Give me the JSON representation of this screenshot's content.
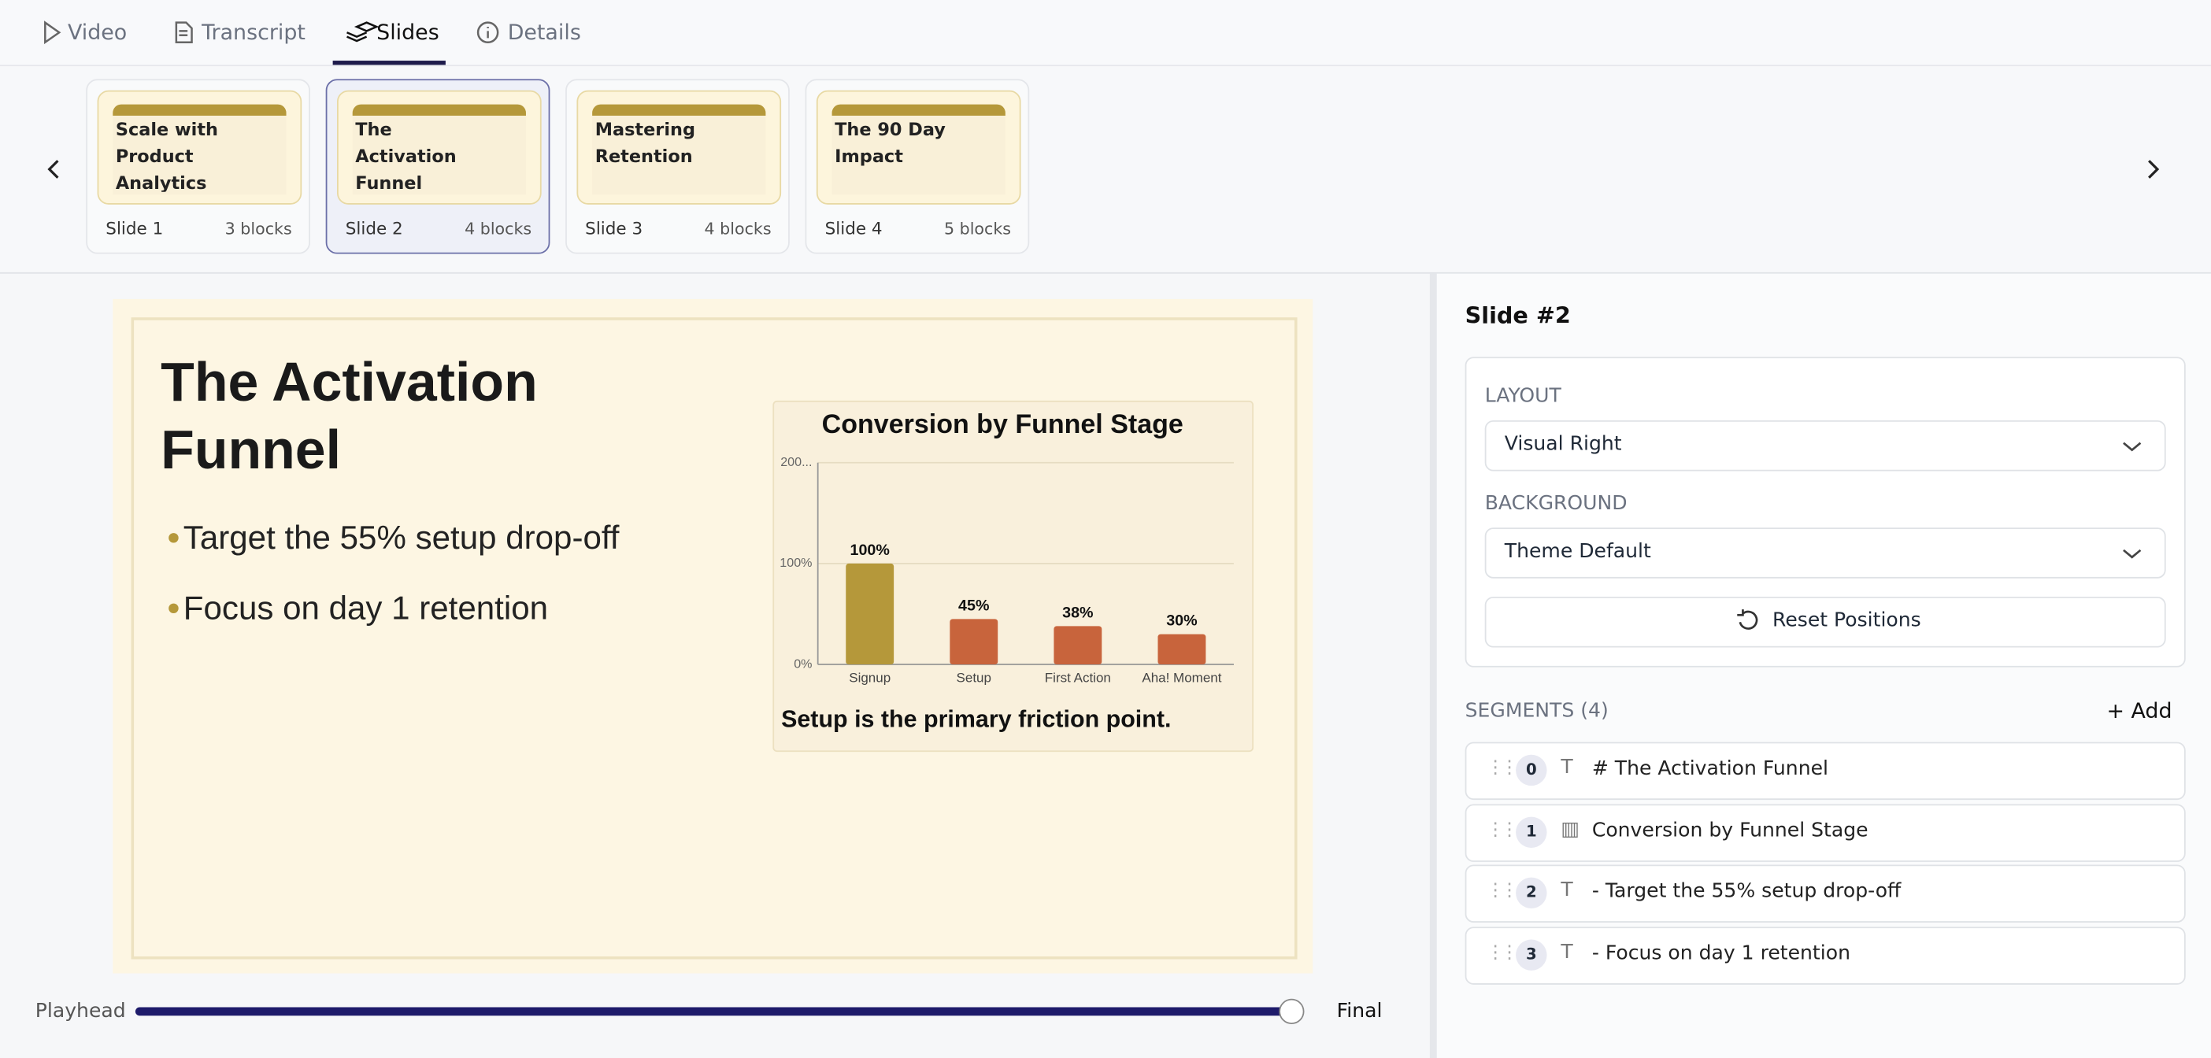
{
  "tabs": [
    "Video",
    "Transcript",
    "Slides",
    "Details"
  ],
  "slides": [
    {
      "title": "Scale with Product Analytics",
      "label": "Slide 1",
      "blocks": "3 blocks"
    },
    {
      "title": "The Activation Funnel",
      "label": "Slide 2",
      "blocks": "4 blocks"
    },
    {
      "title": "Mastering Retention",
      "label": "Slide 3",
      "blocks": "4 blocks"
    },
    {
      "title": "The 90 Day Impact",
      "label": "Slide 4",
      "blocks": "5 blocks"
    }
  ],
  "slide": {
    "title": "The Activation Funnel",
    "bullets": [
      "Target the 55% setup drop-off",
      "Focus on day 1 retention"
    ],
    "caption": "Setup is the primary friction point."
  },
  "chart_data": {
    "type": "bar",
    "title": "Conversion by Funnel Stage",
    "categories": [
      "Signup",
      "Setup",
      "First Action",
      "Aha! Moment"
    ],
    "series": [
      {
        "values": [
          100,
          45,
          38,
          30
        ],
        "value_labels": [
          "100%",
          "45%",
          "38%",
          "30%"
        ],
        "colors": [
          "#b5983a",
          "#c8643c",
          "#c8643c",
          "#c8643c"
        ]
      }
    ],
    "ylim": [
      0,
      200
    ],
    "yticks": [
      {
        "value": 0,
        "label": "0%"
      },
      {
        "value": 100,
        "label": "100%"
      },
      {
        "value": 200,
        "label": "200..."
      }
    ],
    "grid": true
  },
  "panel": {
    "heading": "Slide #2",
    "layout_label": "LAYOUT",
    "layout_value": "Visual Right",
    "background_label": "BACKGROUND",
    "background_value": "Theme Default",
    "reset": "Reset Positions",
    "segments_label": "SEGMENTS (4)",
    "add": "Add",
    "segments": [
      {
        "index": 0,
        "text": "# The Activation Funnel"
      },
      {
        "index": 1,
        "text": "Conversion by Funnel Stage"
      },
      {
        "index": 2,
        "text": "- Target the 55% setup drop-off"
      },
      {
        "index": 3,
        "text": "- Focus on day 1 retention"
      }
    ]
  },
  "playhead": {
    "label": "Playhead",
    "end": "Final"
  }
}
